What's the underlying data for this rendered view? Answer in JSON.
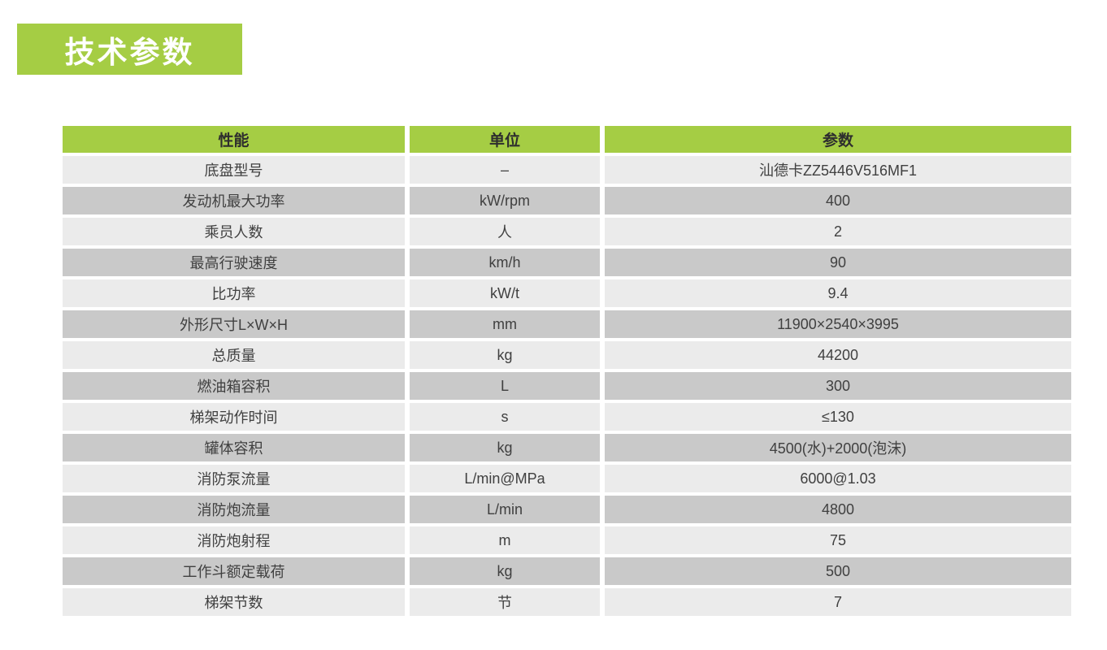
{
  "page": {
    "background_color": "#ffffff",
    "accent_green": "#a5cd44",
    "row_light_gray": "#ebebeb",
    "row_dark_gray": "#c9c9c9",
    "text_color": "#404040"
  },
  "title_badge": {
    "label": "技术参数",
    "bg_color": "#a5cd44",
    "text_color": "#ffffff"
  },
  "table": {
    "headers": [
      "性能",
      "单位",
      "参数"
    ],
    "rows": [
      {
        "name": "底盘型号",
        "unit": "–",
        "value": "汕德卡ZZ5446V516MF1"
      },
      {
        "name": "发动机最大功率",
        "unit": "kW/rpm",
        "value": "400"
      },
      {
        "name": "乘员人数",
        "unit": "人",
        "value": "2"
      },
      {
        "name": "最高行驶速度",
        "unit": "km/h",
        "value": "90"
      },
      {
        "name": "比功率",
        "unit": "kW/t",
        "value": "9.4"
      },
      {
        "name": "外形尺寸L×W×H",
        "unit": "mm",
        "value": "11900×2540×3995"
      },
      {
        "name": "总质量",
        "unit": "kg",
        "value": "44200"
      },
      {
        "name": "燃油箱容积",
        "unit": "L",
        "value": "300"
      },
      {
        "name": "梯架动作时间",
        "unit": "s",
        "value": "≤130"
      },
      {
        "name": "罐体容积",
        "unit": "kg",
        "value": "4500(水)+2000(泡沫)"
      },
      {
        "name": "消防泵流量",
        "unit": "L/min@MPa",
        "value": "6000@1.03"
      },
      {
        "name": "消防炮流量",
        "unit": "L/min",
        "value": "4800"
      },
      {
        "name": "消防炮射程",
        "unit": "m",
        "value": "75"
      },
      {
        "name": "工作斗额定载荷",
        "unit": "kg",
        "value": "500"
      },
      {
        "name": "梯架节数",
        "unit": "节",
        "value": "7"
      }
    ]
  }
}
